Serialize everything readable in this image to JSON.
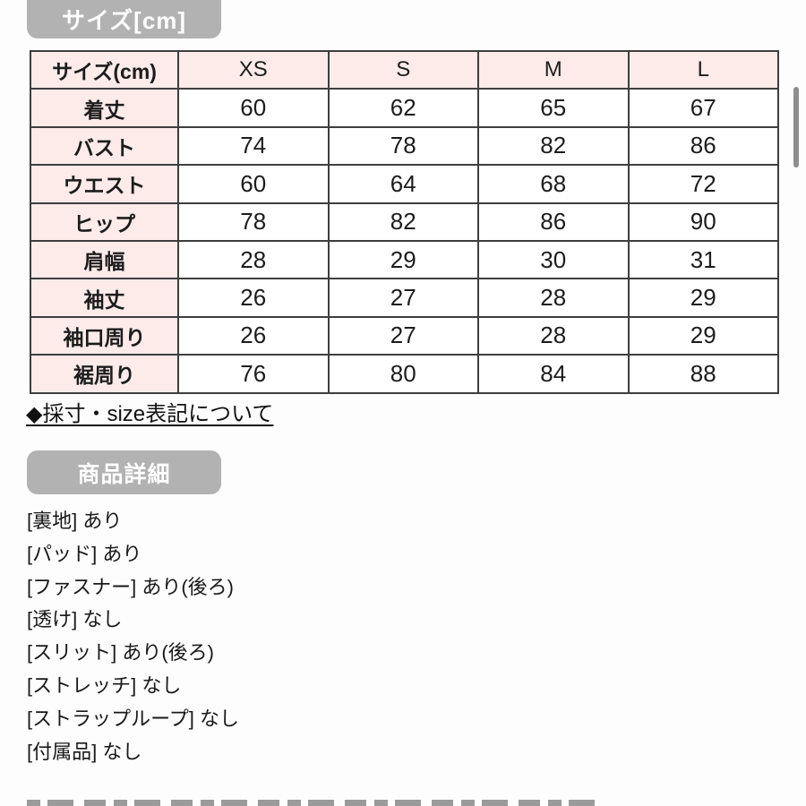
{
  "size_section": {
    "title": "サイズ[cm]",
    "table": {
      "header": {
        "c0": "サイズ(cm)",
        "c1": "XS",
        "c2": "S",
        "c3": "M",
        "c4": "L"
      },
      "rows": [
        {
          "label": "着丈",
          "values": [
            "60",
            "62",
            "65",
            "67"
          ]
        },
        {
          "label": "バスト",
          "values": [
            "74",
            "78",
            "82",
            "86"
          ]
        },
        {
          "label": "ウエスト",
          "values": [
            "60",
            "64",
            "68",
            "72"
          ]
        },
        {
          "label": "ヒップ",
          "values": [
            "78",
            "82",
            "86",
            "90"
          ]
        },
        {
          "label": "肩幅",
          "values": [
            "28",
            "29",
            "30",
            "31"
          ]
        },
        {
          "label": "袖丈",
          "values": [
            "26",
            "27",
            "28",
            "29"
          ]
        },
        {
          "label": "袖口周り",
          "values": [
            "26",
            "27",
            "28",
            "29"
          ]
        },
        {
          "label": "裾周り",
          "values": [
            "76",
            "80",
            "84",
            "88"
          ]
        }
      ]
    },
    "link_label": "◆採寸・size表記について"
  },
  "details_section": {
    "title": "商品詳細",
    "items": [
      "[裏地] あり",
      "[パッド] あり",
      "[ファスナー] あり(後ろ)",
      "[透け] なし",
      "[スリット] あり(後ろ)",
      "[ストレッチ] なし",
      "[ストラップループ] なし",
      "[付属品] なし"
    ]
  },
  "colors": {
    "pill_bg": "#b2b2b2",
    "table_pink": "#fcebe9",
    "table_border": "#3e3e3e",
    "text": "#1c1c1c",
    "scrollbar": "#8e8e8e"
  }
}
